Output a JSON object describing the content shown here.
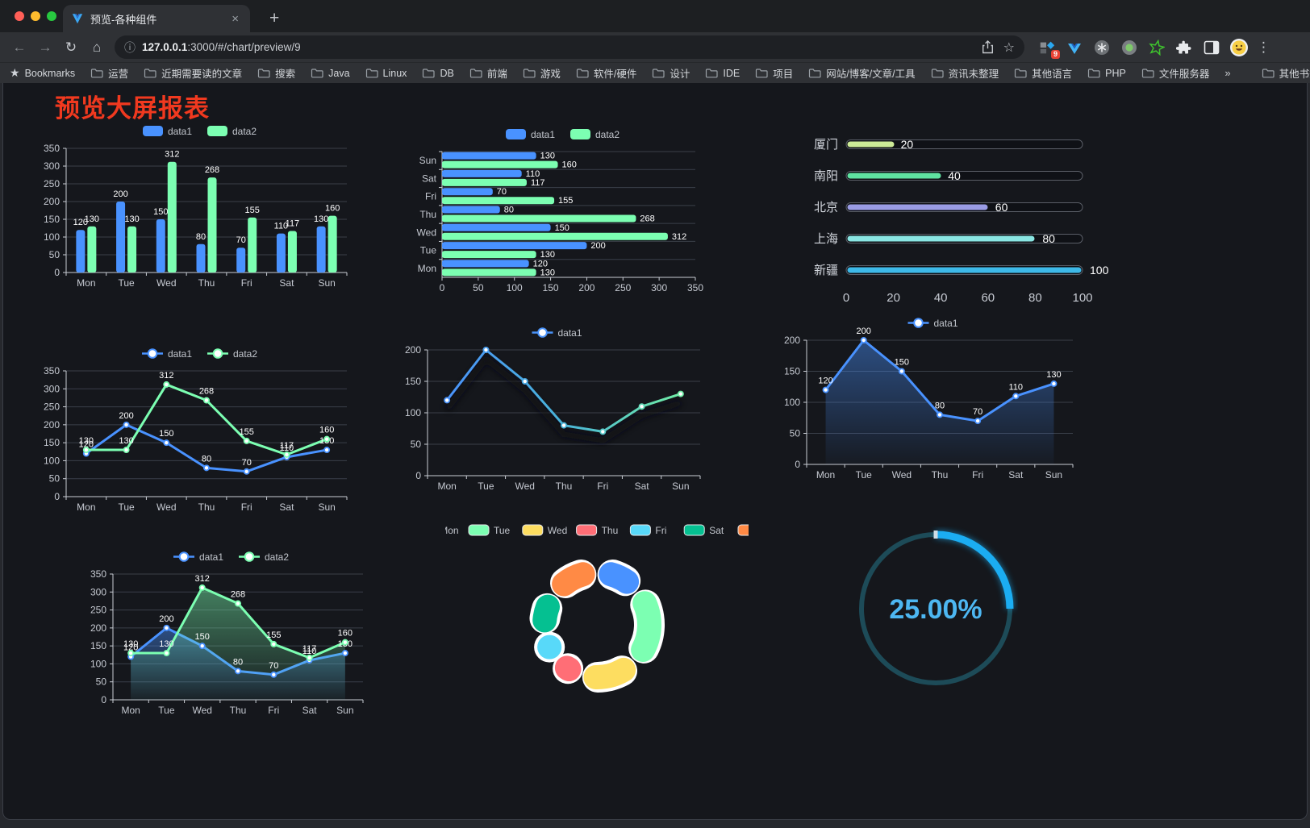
{
  "browser": {
    "tab": {
      "title": "预览-各种组件",
      "close_glyph": "×",
      "new_tab_glyph": "+"
    },
    "url": {
      "host": "127.0.0.1",
      "path": ":3000/#/chart/preview/9"
    },
    "extension_badge": "9"
  },
  "bookmarks": {
    "label": "Bookmarks",
    "items": [
      "运营",
      "近期需要读的文章",
      "搜索",
      "Java",
      "Linux",
      "DB",
      "前端",
      "游戏",
      "软件/硬件",
      "设计",
      "IDE",
      "项目",
      "网站/博客/文章/工具",
      "资讯未整理",
      "其他语言",
      "PHP",
      "文件服务器"
    ],
    "overflow_glyph": "»",
    "other_label": "其他书签"
  },
  "page": {
    "title": "预览大屏报表",
    "title_color": "#f1391f",
    "background": "#15171c"
  },
  "chart_data": [
    {
      "id": "bar-vertical",
      "type": "bar",
      "legend_position": "top",
      "categories": [
        "Mon",
        "Tue",
        "Wed",
        "Thu",
        "Fri",
        "Sat",
        "Sun"
      ],
      "series": [
        {
          "name": "data1",
          "color": "#4992ff",
          "values": [
            120,
            200,
            150,
            80,
            70,
            110,
            130
          ]
        },
        {
          "name": "data2",
          "color": "#7cffb2",
          "values": [
            130,
            130,
            312,
            268,
            155,
            117,
            160
          ]
        }
      ],
      "ylim": [
        0,
        350
      ],
      "yticks": [
        0,
        50,
        100,
        150,
        200,
        250,
        300,
        350
      ],
      "value_labels": true
    },
    {
      "id": "bar-horizontal",
      "type": "bar-horizontal",
      "legend_position": "top",
      "categories": [
        "Mon",
        "Tue",
        "Wed",
        "Thu",
        "Fri",
        "Sat",
        "Sun"
      ],
      "category_axis_note": "Mon at bottom, Sun at top",
      "series": [
        {
          "name": "data1",
          "color": "#4992ff",
          "values": [
            120,
            200,
            150,
            80,
            70,
            110,
            130
          ]
        },
        {
          "name": "data2",
          "color": "#7cffb2",
          "values": [
            130,
            130,
            312,
            268,
            155,
            117,
            160
          ]
        }
      ],
      "xlim": [
        0,
        350
      ],
      "xticks": [
        0,
        50,
        100,
        150,
        200,
        250,
        300,
        350
      ],
      "value_labels": true
    },
    {
      "id": "capsule",
      "type": "capsule-bar",
      "xlim": [
        0,
        100
      ],
      "xticks": [
        0,
        20,
        40,
        60,
        80,
        100
      ],
      "rows": [
        {
          "label": "厦门",
          "value": 20,
          "color": "#cdeb97"
        },
        {
          "label": "南阳",
          "value": 40,
          "color": "#5fe3a1"
        },
        {
          "label": "北京",
          "value": 60,
          "color": "#999be4"
        },
        {
          "label": "上海",
          "value": 80,
          "color": "#8ae6e3"
        },
        {
          "label": "新疆",
          "value": 100,
          "color": "#3db9e8"
        }
      ]
    },
    {
      "id": "line-double",
      "type": "line",
      "legend_position": "top",
      "categories": [
        "Mon",
        "Tue",
        "Wed",
        "Thu",
        "Fri",
        "Sat",
        "Sun"
      ],
      "series": [
        {
          "name": "data1",
          "color": "#4992ff",
          "values": [
            120,
            200,
            150,
            80,
            70,
            110,
            130
          ]
        },
        {
          "name": "data2",
          "color": "#7cffb2",
          "values": [
            130,
            130,
            312,
            268,
            155,
            117,
            160
          ]
        }
      ],
      "ylim": [
        0,
        350
      ],
      "yticks": [
        0,
        50,
        100,
        150,
        200,
        250,
        300,
        350
      ],
      "value_labels": true
    },
    {
      "id": "line-gradient",
      "type": "line",
      "legend_position": "top",
      "shadow": true,
      "categories": [
        "Mon",
        "Tue",
        "Wed",
        "Thu",
        "Fri",
        "Sat",
        "Sun"
      ],
      "series": [
        {
          "name": "data1",
          "gradient": [
            "#4a93fa",
            "#49b4d8",
            "#70eda6"
          ],
          "values": [
            120,
            200,
            150,
            80,
            70,
            110,
            130
          ]
        }
      ],
      "ylim": [
        0,
        200
      ],
      "yticks": [
        0,
        50,
        100,
        150,
        200
      ],
      "value_labels": false
    },
    {
      "id": "line-area",
      "type": "line",
      "legend_position": "top",
      "categories": [
        "Mon",
        "Tue",
        "Wed",
        "Thu",
        "Fri",
        "Sat",
        "Sun"
      ],
      "series": [
        {
          "name": "data1",
          "color": "#4992ff",
          "area": true,
          "values": [
            120,
            200,
            150,
            80,
            70,
            110,
            130
          ]
        }
      ],
      "ylim": [
        0,
        200
      ],
      "yticks": [
        0,
        50,
        100,
        150,
        200
      ],
      "value_labels": true
    },
    {
      "id": "line-double-area",
      "type": "line",
      "legend_position": "top",
      "categories": [
        "Mon",
        "Tue",
        "Wed",
        "Thu",
        "Fri",
        "Sat",
        "Sun"
      ],
      "series": [
        {
          "name": "data1",
          "color": "#4992ff",
          "area": true,
          "values": [
            120,
            200,
            150,
            80,
            70,
            110,
            130
          ]
        },
        {
          "name": "data2",
          "color": "#7cffb2",
          "area": true,
          "values": [
            130,
            130,
            312,
            268,
            155,
            117,
            160
          ]
        }
      ],
      "ylim": [
        0,
        350
      ],
      "yticks": [
        0,
        50,
        100,
        150,
        200,
        250,
        300,
        350
      ],
      "value_labels": true
    },
    {
      "id": "pie-donut",
      "type": "pie",
      "shape": "donut",
      "legend_position": "top",
      "slices": [
        {
          "label": "Mon",
          "value": 120,
          "color": "#4992ff"
        },
        {
          "label": "Tue",
          "value": 200,
          "color": "#7cffb2"
        },
        {
          "label": "Wed",
          "value": 150,
          "color": "#fddd60"
        },
        {
          "label": "Thu",
          "value": 80,
          "color": "#ff6e76"
        },
        {
          "label": "Fri",
          "value": 70,
          "color": "#58d9f9"
        },
        {
          "label": "Sat",
          "value": 110,
          "color": "#05c091"
        },
        {
          "label": "Sun",
          "value": 130,
          "color": "#ff8a45"
        }
      ]
    },
    {
      "id": "gauge",
      "type": "gauge",
      "value_text": "25.00%",
      "percent": 25,
      "progress_color": "#1badf2",
      "track_color": "#1d4b58",
      "text_color": "#4db7f2"
    }
  ]
}
